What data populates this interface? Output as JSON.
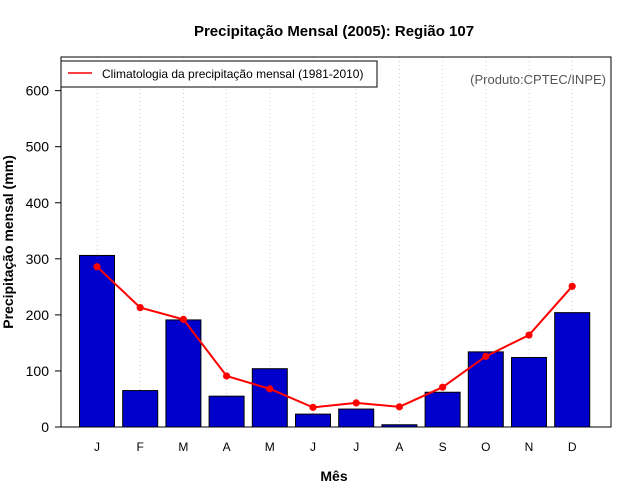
{
  "chart_data": {
    "type": "bar",
    "title": "Precipitação Mensal (2005): Região 107",
    "xlabel": "Mês",
    "ylabel": "Precipitação mensal (mm)",
    "ylim": [
      0,
      660
    ],
    "yticks": [
      0,
      100,
      200,
      300,
      400,
      500,
      600
    ],
    "categories": [
      "J",
      "F",
      "M",
      "A",
      "M",
      "J",
      "J",
      "A",
      "S",
      "O",
      "N",
      "D"
    ],
    "bar_series": {
      "name": "Precipitação mensal 2005",
      "color": "#0000cc",
      "values": [
        306,
        65,
        191,
        55,
        104,
        23,
        32,
        4,
        62,
        134,
        124,
        204
      ]
    },
    "line_series": {
      "name": "Climatologia da precipitação mensal (1981-2010)",
      "color": "#ff0000",
      "values": [
        286,
        213,
        192,
        91,
        68,
        35,
        43,
        36,
        71,
        126,
        164,
        251
      ]
    },
    "legend_position": "top-left",
    "grid": "vertical dotted",
    "credit": "(Produto:CPTEC/INPE)"
  }
}
